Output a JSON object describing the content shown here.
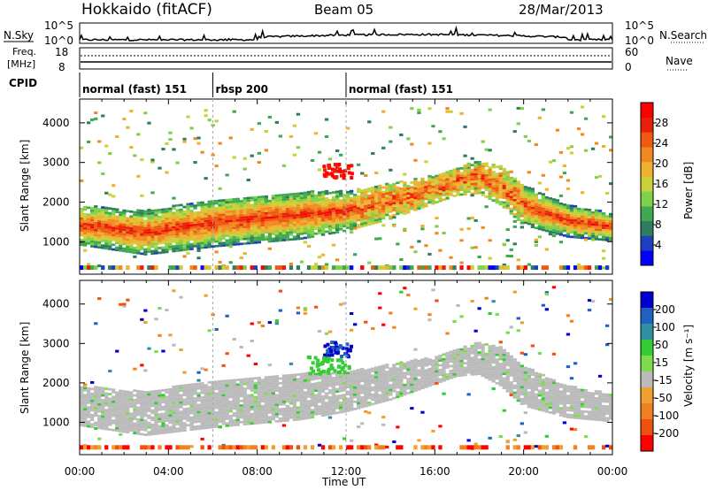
{
  "header": {
    "station": "Hokkaido (fitACF)",
    "beam": "Beam 05",
    "date": "28/Mar/2013"
  },
  "top_panels": {
    "noise_left_label": "N.Sky",
    "noise_right_label": "N.Search",
    "noise_left_ticks": [
      "10^5",
      "10^0"
    ],
    "noise_right_ticks": [
      "10^5",
      "10^0"
    ],
    "freq_label_line1": "Freq.",
    "freq_label_line2": "[MHz]",
    "freq_ticks": [
      "18",
      "8"
    ],
    "nave_label": "Nave",
    "nave_ticks": [
      "60",
      "0"
    ],
    "cpid_label": "CPID",
    "cpid_segments": [
      {
        "label": "normal (fast) 151",
        "start_hour": 0,
        "end_hour": 6
      },
      {
        "label": "rbsp 200",
        "start_hour": 6,
        "end_hour": 12
      },
      {
        "label": "normal (fast) 151",
        "start_hour": 12,
        "end_hour": 24
      }
    ]
  },
  "chart_data": [
    {
      "type": "heatmap",
      "name": "power",
      "ylabel": "Slant Range [km]",
      "xlabel": "Time UT",
      "xlim": [
        0,
        24
      ],
      "ylim": [
        180,
        4600
      ],
      "x_tick_labels": [
        "00:00",
        "04:00",
        "08:00",
        "12:00",
        "16:00",
        "20:00",
        "00:00"
      ],
      "y_ticks": [
        1000,
        2000,
        3000,
        4000
      ],
      "colorbar": {
        "label": "Power [dB]",
        "ticks": [
          "4",
          "8",
          "12",
          "16",
          "20",
          "24",
          "28"
        ],
        "range": [
          0,
          30
        ],
        "colors": [
          "#0000ff",
          "#1f3fbf",
          "#2e7d5e",
          "#3fa94f",
          "#7fd14a",
          "#c8d13a",
          "#f0b030",
          "#f08a20",
          "#f05a10",
          "#e8200a",
          "#ff0000"
        ]
      },
      "echo_bands": [
        {
          "t": [
            0,
            3,
            6,
            8,
            10,
            12,
            14,
            16,
            17,
            18,
            19,
            20,
            22,
            24
          ],
          "center_km": [
            1400,
            1200,
            1450,
            1550,
            1650,
            1750,
            2000,
            2300,
            2500,
            2600,
            2400,
            1900,
            1500,
            1350
          ],
          "width_km": [
            500,
            550,
            600,
            600,
            600,
            500,
            450,
            350,
            350,
            400,
            500,
            500,
            400,
            350
          ],
          "level_db": 27
        }
      ]
    },
    {
      "type": "heatmap",
      "name": "velocity",
      "ylabel": "Slant Range [km]",
      "xlabel": "Time UT",
      "xlim": [
        0,
        24
      ],
      "ylim": [
        180,
        4600
      ],
      "x_tick_labels": [
        "00:00",
        "04:00",
        "08:00",
        "12:00",
        "16:00",
        "20:00",
        "00:00"
      ],
      "y_ticks": [
        1000,
        2000,
        3000,
        4000
      ],
      "colorbar": {
        "label": "Velocity [m s⁻¹]",
        "ticks": [
          "200",
          "100",
          "50",
          "15",
          "-15",
          "-50",
          "-100",
          "-200"
        ],
        "colors": [
          "#0000cc",
          "#2060c0",
          "#3090a0",
          "#33cc33",
          "#7ddc4a",
          "#bbbbbb",
          "#f0a030",
          "#f08020",
          "#f05010",
          "#ff0000"
        ]
      },
      "note": ""
    }
  ],
  "colors": {
    "ground_scatter": "#bbbbbb",
    "axis": "#000000"
  }
}
